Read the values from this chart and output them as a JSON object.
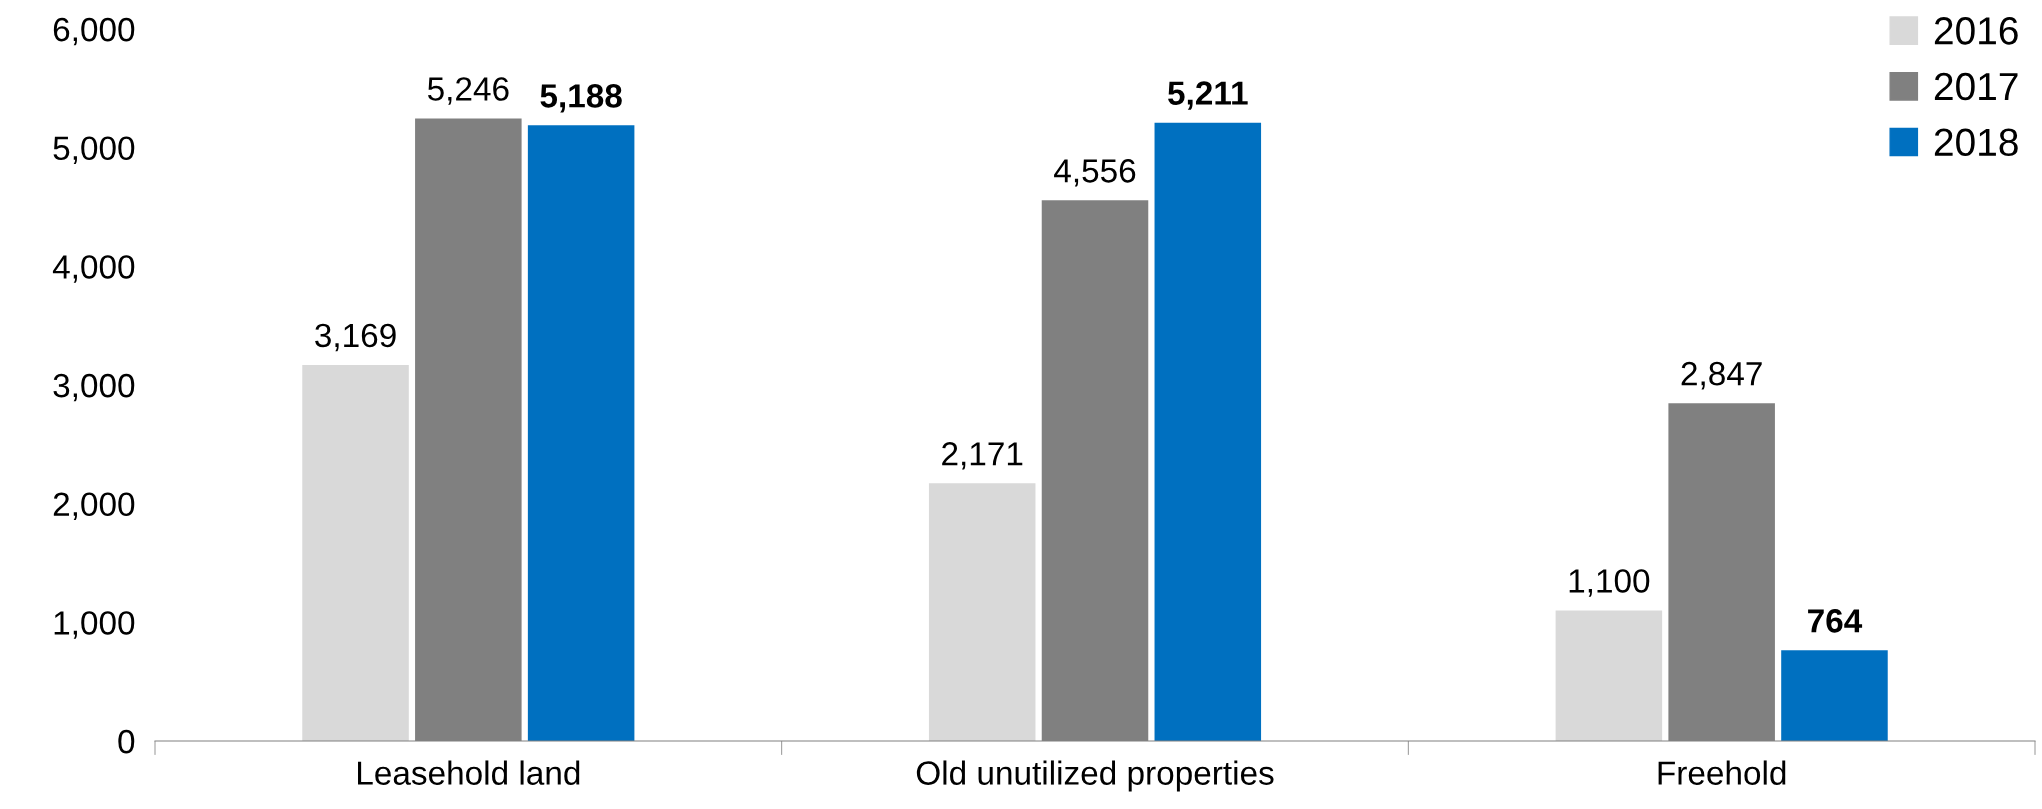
{
  "chart_data": {
    "type": "bar",
    "categories": [
      "Leasehold land",
      "Old unutilized properties",
      "Freehold"
    ],
    "series": [
      {
        "name": "2016",
        "color": "#d9d9d9",
        "values": [
          3169,
          2171,
          1100
        ],
        "value_labels": [
          "3,169",
          "2,171",
          "1,100"
        ]
      },
      {
        "name": "2017",
        "color": "#808080",
        "values": [
          5246,
          4556,
          2847
        ],
        "value_labels": [
          "5,246",
          "4,556",
          "2,847"
        ]
      },
      {
        "name": "2018",
        "color": "#0070c0",
        "values": [
          5188,
          5211,
          764
        ],
        "value_labels": [
          "5,188",
          "5,211",
          "764"
        ]
      }
    ],
    "ylim": [
      0,
      6000
    ],
    "yticks": [
      {
        "value": 0,
        "label": "0"
      },
      {
        "value": 1000,
        "label": "1,000"
      },
      {
        "value": 2000,
        "label": "2,000"
      },
      {
        "value": 3000,
        "label": "3,000"
      },
      {
        "value": 4000,
        "label": "4,000"
      },
      {
        "value": 5000,
        "label": "5,000"
      },
      {
        "value": 6000,
        "label": "6,000"
      }
    ],
    "legend": "top right",
    "grid": false
  }
}
